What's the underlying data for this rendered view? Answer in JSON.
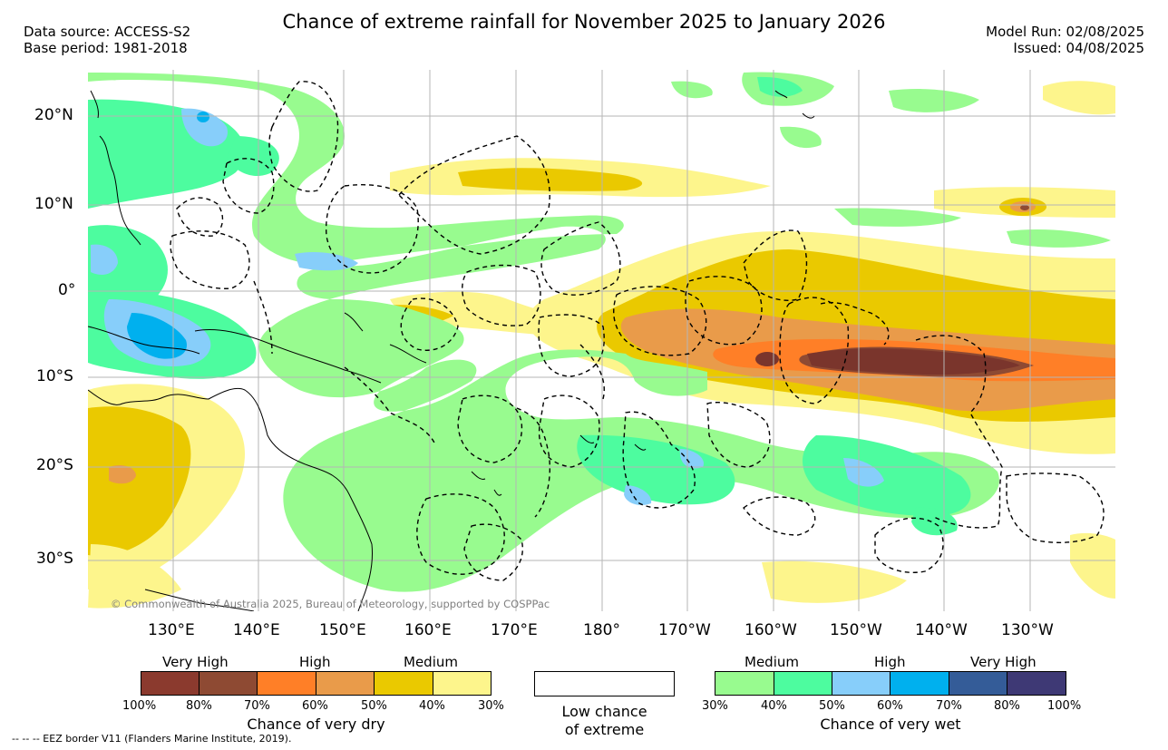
{
  "title": "Chance of extreme rainfall for November 2025 to January 2026",
  "meta_left": {
    "line1": "Data source: ACCESS-S2",
    "line2": "Base period: 1981-2018"
  },
  "meta_right": {
    "line1": "Model Run: 02/08/2025",
    "line2": "Issued: 04/08/2025"
  },
  "map": {
    "lat_labels": [
      "20°N",
      "10°N",
      "0°",
      "10°S",
      "20°S",
      "30°S"
    ],
    "lon_labels": [
      "130°E",
      "140°E",
      "150°E",
      "160°E",
      "170°E",
      "180°",
      "170°W",
      "160°W",
      "150°W",
      "140°W",
      "130°W"
    ],
    "copyright": "© Commonwealth of Australia 2025, Bureau of Meteorology, supported by COSPPac"
  },
  "legend_dry": {
    "title": "Chance of very dry",
    "categories": [
      "Very High",
      "High",
      "Medium"
    ],
    "colors": [
      "#8b3a2e",
      "#8e4a33",
      "#ff7f27",
      "#e99b4a",
      "#eac900",
      "#fdf58c"
    ],
    "ticks": [
      "100%",
      "80%",
      "70%",
      "60%",
      "50%",
      "40%",
      "30%"
    ]
  },
  "legend_low": {
    "line1": "Low chance",
    "line2": "of extreme",
    "color": "#ffffff"
  },
  "legend_wet": {
    "title": "Chance of very wet",
    "categories": [
      "Medium",
      "High",
      "Very High"
    ],
    "colors": [
      "#98fb8f",
      "#4dfc9f",
      "#87cefa",
      "#00b0ee",
      "#345c98",
      "#3e3975"
    ],
    "ticks": [
      "30%",
      "40%",
      "50%",
      "60%",
      "70%",
      "80%",
      "100%"
    ]
  },
  "footer": "--  --  -- EEZ border V11 (Flanders Marine Institute, 2019)."
}
